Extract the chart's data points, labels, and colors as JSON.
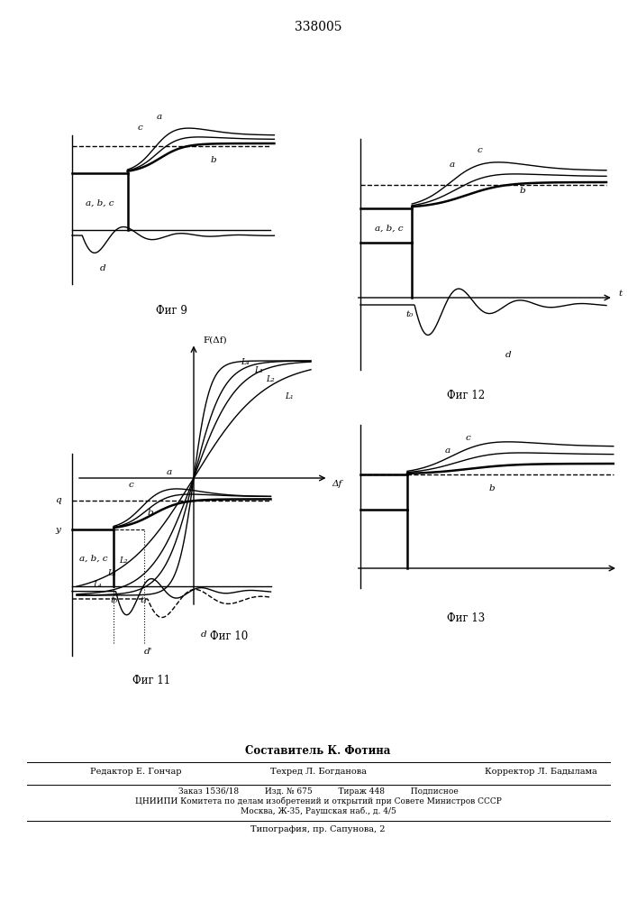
{
  "title": "338005",
  "title_fontsize": 10,
  "bg_color": "#ffffff",
  "fig9_label": "Фиг 9",
  "fig10_label": "Фиг 10",
  "fig11_label": "Фиг 11",
  "fig12_label": "Фиг 12",
  "fig13_label": "Фиг 13",
  "footer_bold": "Составитель К. Фотина",
  "footer_ed": "Редактор Е. Гончар",
  "footer_tech": "Техред Л. Богданова",
  "footer_corr": "Корректор Л. Бадылама",
  "footer_order": "Заказ 1536/18          Изд. № 675          Тираж 448          Подписное",
  "footer_cnii": "ЦНИИПИ Комитета по делам изобретений и открытий при Совете Министров СССР",
  "footer_moscow": "Москва, Ж-35, Раушская наб., д. 4/5",
  "footer_typo": "Типография, пр. Сапунова, 2"
}
